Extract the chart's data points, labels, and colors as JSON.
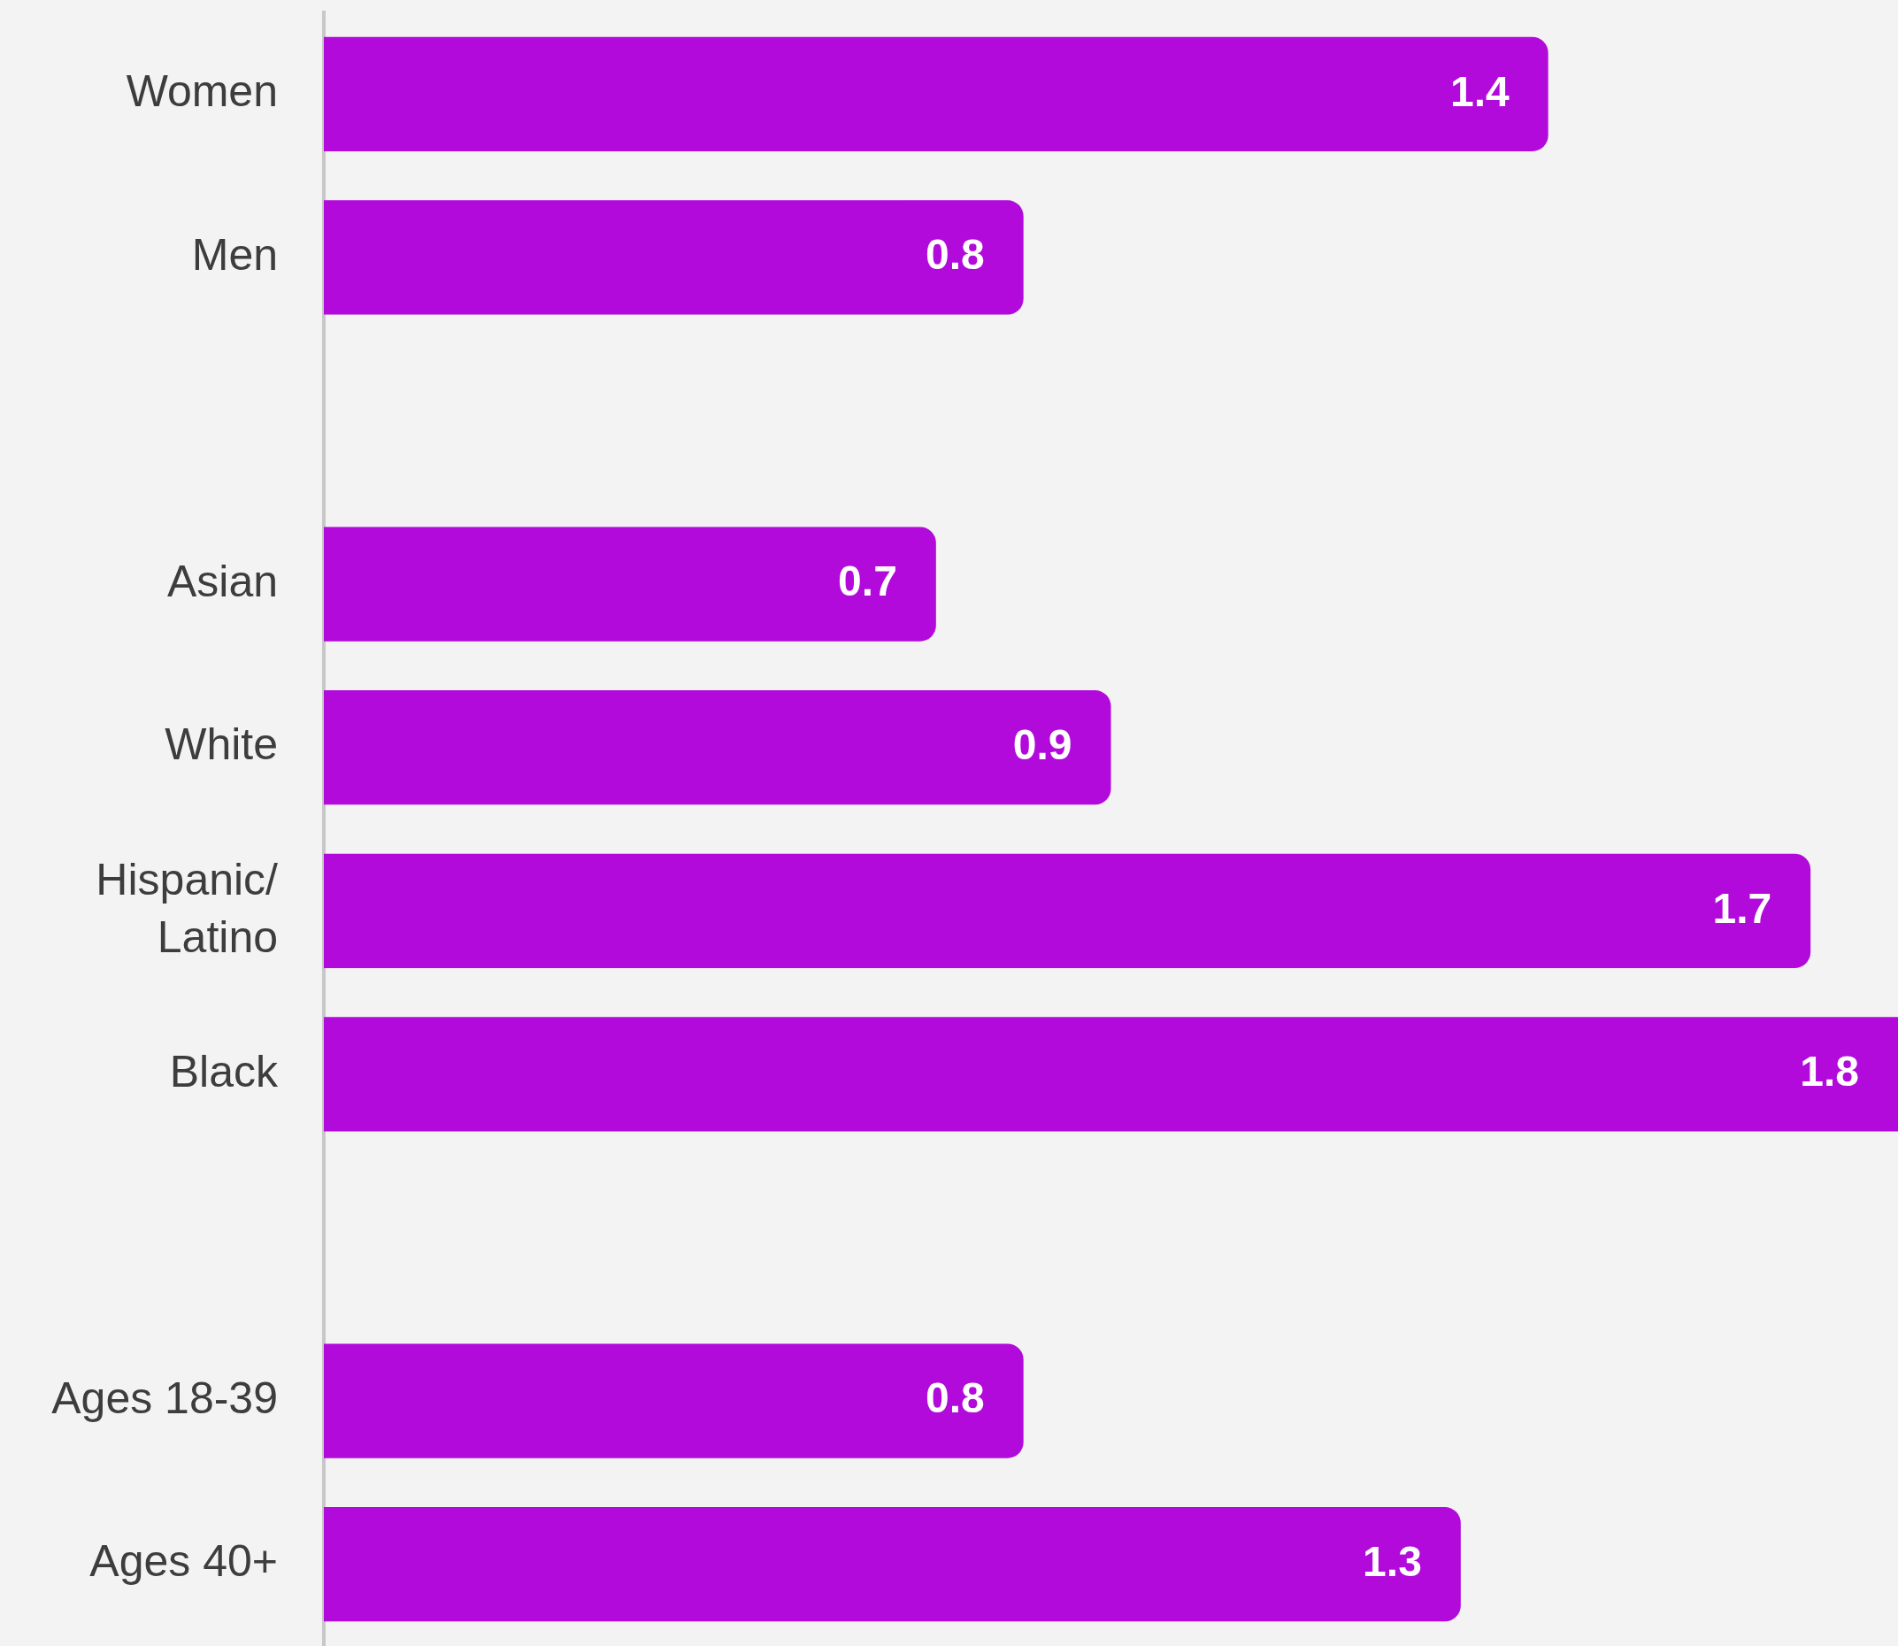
{
  "chart_data": {
    "type": "bar",
    "orientation": "horizontal",
    "categories": [
      "Women",
      "Men",
      null,
      "Asian",
      "White",
      "Hispanic/Latino",
      "Black",
      null,
      "Ages 18-39",
      "Ages 40+"
    ],
    "values": [
      1.4,
      0.8,
      null,
      0.7,
      0.9,
      1.7,
      1.8,
      null,
      0.8,
      1.3
    ],
    "color": "#b10adb",
    "xlim": [
      0,
      1.8
    ],
    "data_labels": true,
    "tick_labels": "y"
  }
}
